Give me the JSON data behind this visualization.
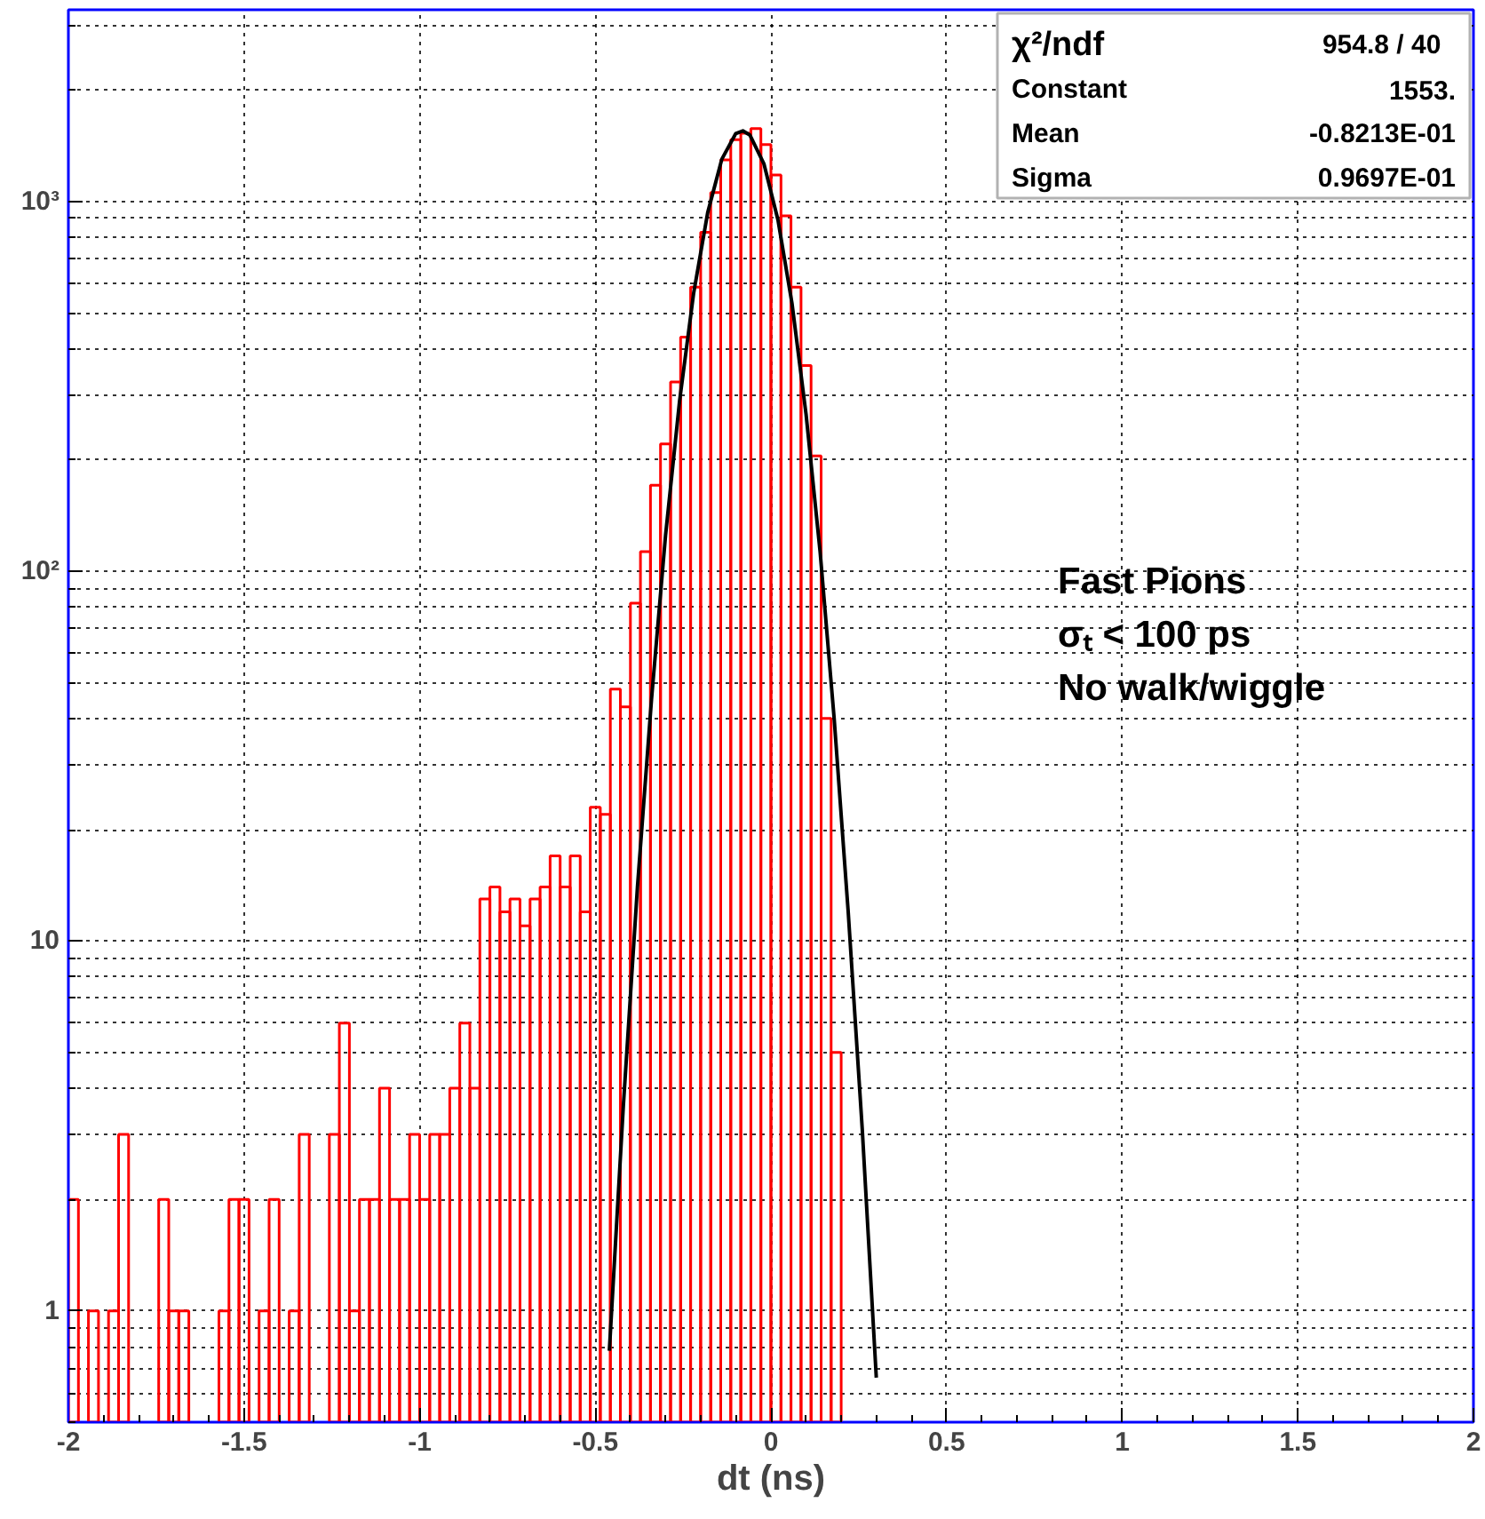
{
  "chart_data": {
    "type": "histogram",
    "xlabel": "dt (ns)",
    "log": true,
    "grid": true,
    "xlim": [
      -2,
      2
    ],
    "xticks": [
      -2,
      -1.5,
      -1,
      -0.5,
      0,
      0.5,
      1,
      1.5,
      2
    ],
    "ylim": [
      0.5,
      3300
    ],
    "yticks": [
      1,
      10,
      {
        "value": 100,
        "label": "10²"
      },
      {
        "value": 1000,
        "label": "10³"
      }
    ],
    "bins": [
      -2.0,
      -1.9714,
      -1.9429,
      -1.9143,
      -1.8857,
      -1.8571,
      -1.8286,
      -1.8,
      -1.7714,
      -1.7429,
      -1.7143,
      -1.6857,
      -1.6571,
      -1.6286,
      -1.6,
      -1.5714,
      -1.5429,
      -1.5143,
      -1.4857,
      -1.4571,
      -1.4286,
      -1.4,
      -1.3714,
      -1.3429,
      -1.3143,
      -1.2857,
      -1.2571,
      -1.2286,
      -1.2,
      -1.1714,
      -1.1429,
      -1.1143,
      -1.0857,
      -1.0571,
      -1.0286,
      -1.0,
      -0.9714,
      -0.9429,
      -0.9143,
      -0.8857,
      -0.8571,
      -0.8286,
      -0.8,
      -0.7714,
      -0.7429,
      -0.7143,
      -0.6857,
      -0.6571,
      -0.6286,
      -0.6,
      -0.5714,
      -0.5429,
      -0.5143,
      -0.4857,
      -0.4571,
      -0.4286,
      -0.4,
      -0.3714,
      -0.3429,
      -0.3143,
      -0.2857,
      -0.2571,
      -0.2286,
      -0.2,
      -0.1714,
      -0.1429,
      -0.1143,
      -0.0857,
      -0.0571,
      -0.0286,
      0.0,
      0.0286,
      0.0571,
      0.0857,
      0.1143,
      0.1429,
      0.1714,
      0.2
    ],
    "series": [
      {
        "color": "#ff0000",
        "values": [
          2,
          null,
          1,
          null,
          1,
          3,
          null,
          null,
          null,
          2,
          1,
          1,
          null,
          null,
          null,
          1,
          2,
          2,
          null,
          1,
          2,
          null,
          1,
          3,
          null,
          null,
          3,
          6,
          1,
          2,
          2,
          4,
          2,
          2,
          3,
          2,
          3,
          3,
          4,
          6,
          4,
          13,
          14,
          12,
          13,
          11,
          13,
          14,
          17,
          14,
          17,
          12,
          23,
          22,
          48,
          43,
          82,
          113,
          171,
          221,
          325,
          430,
          587,
          826,
          1057,
          1296,
          1469,
          1530,
          1574,
          1425,
          1180,
          915,
          587,
          360,
          205,
          40,
          5
        ]
      },
      {
        "type": "line",
        "color": "#000000",
        "x": [
          -0.46,
          -0.42,
          -0.38,
          -0.34,
          -0.3,
          -0.26,
          -0.22,
          -0.18,
          -0.14,
          -0.1,
          -0.08,
          -0.06,
          -0.02,
          0.02,
          0.06,
          0.1,
          0.14,
          0.18,
          0.22,
          0.26,
          0.3
        ],
        "values": [
          0.78,
          3.6,
          14,
          45,
          125,
          289,
          565,
          933,
          1300,
          1527,
          1553,
          1513,
          1265,
          892,
          530,
          266,
          113,
          40,
          12,
          3.1,
          0.66
        ]
      }
    ],
    "annotations": [
      "χ²/ndf",
      "954.8  /  40",
      "Constant",
      "1553.",
      "Mean",
      "-0.8213E-01",
      "Sigma",
      "0.9697E-01",
      "Fast Pions",
      "σₜ < 100 ps",
      "No walk/wiggle"
    ]
  }
}
